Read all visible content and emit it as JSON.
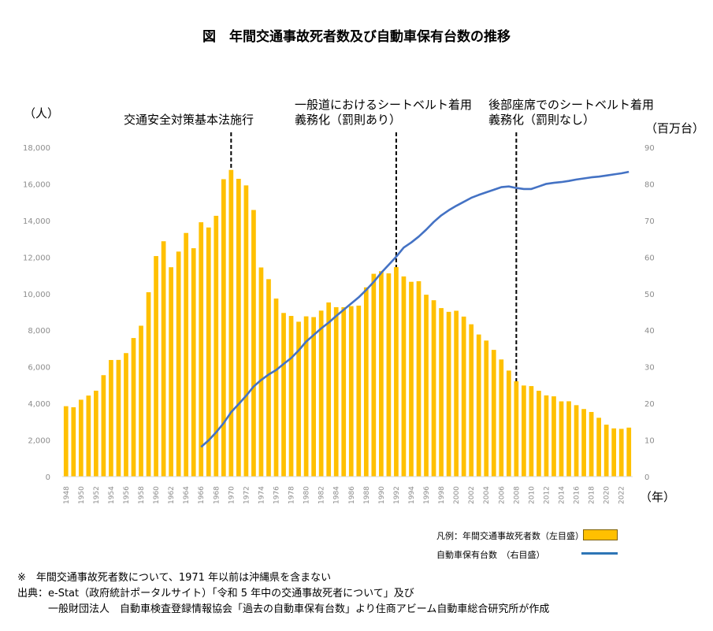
{
  "title": "図　年間交通事故死者数及び自動車保有台数の推移",
  "unit_left": "（人）",
  "unit_right": "（百万台）",
  "year_unit": "（年）",
  "annotations": [
    {
      "line1": "交通安全対策基本法施行",
      "line2": ""
    },
    {
      "line1": "一般道におけるシートベルト着用",
      "line2": "義務化（罰則あり）"
    },
    {
      "line1": "後部座席でのシートベルト着用",
      "line2": "義務化（罰則なし）"
    }
  ],
  "legend": {
    "bar_label": "凡例：年間交通事故死者数（左目盛）",
    "line_label": "自動車保有台数　（右目盛）"
  },
  "notes": {
    "line1": "※　年間交通事故死者数について、1971 年以前は沖縄県を含まない",
    "line2": "出典：e-Stat（政府統計ポータルサイト）「令和 5 年中の交通事故死者について」及び",
    "line3": "　　　一般財団法人　自動車検査登録情報協会「過去の自動車保有台数」より住商アビーム自動車総合研究所が作成"
  },
  "colors": {
    "bar": "#FFC000",
    "line": "#4472C4",
    "axis_text": "#8c8c8c",
    "grid": "#d9d9d9"
  },
  "chart_data": {
    "type": "bar+line",
    "x_start": 1948,
    "x_end": 2023,
    "x_tick_labels": [
      "1948",
      "1950",
      "1952",
      "1954",
      "1956",
      "1958",
      "1960",
      "1962",
      "1964",
      "1966",
      "1968",
      "1970",
      "1972",
      "1974",
      "1976",
      "1978",
      "1980",
      "1982",
      "1984",
      "1986",
      "1988",
      "1990",
      "1992",
      "1994",
      "1996",
      "1998",
      "2000",
      "2002",
      "2004",
      "2006",
      "2008",
      "2010",
      "2012",
      "2014",
      "2016",
      "2018",
      "2020",
      "2022"
    ],
    "y_left": {
      "min": 0,
      "max": 18000,
      "ticks": [
        "0",
        "2,000",
        "4,000",
        "6,000",
        "8,000",
        "10,000",
        "12,000",
        "14,000",
        "16,000",
        "18,000"
      ]
    },
    "y_right": {
      "min": 0,
      "max": 90,
      "ticks": [
        "0",
        "10",
        "20",
        "30",
        "40",
        "50",
        "60",
        "70",
        "80",
        "90"
      ]
    },
    "grid": false,
    "series": [
      {
        "name": "年間交通事故死者数",
        "kind": "bar",
        "axis": "left",
        "x": [
          1948,
          1949,
          1950,
          1951,
          1952,
          1953,
          1954,
          1955,
          1956,
          1957,
          1958,
          1959,
          1960,
          1961,
          1962,
          1963,
          1964,
          1965,
          1966,
          1967,
          1968,
          1969,
          1970,
          1971,
          1972,
          1973,
          1974,
          1975,
          1976,
          1977,
          1978,
          1979,
          1980,
          1981,
          1982,
          1983,
          1984,
          1985,
          1986,
          1987,
          1988,
          1989,
          1990,
          1991,
          1992,
          1993,
          1994,
          1995,
          1996,
          1997,
          1998,
          1999,
          2000,
          2001,
          2002,
          2003,
          2004,
          2005,
          2006,
          2007,
          2008,
          2009,
          2010,
          2011,
          2012,
          2013,
          2014,
          2015,
          2016,
          2017,
          2018,
          2019,
          2020,
          2021,
          2022,
          2023
        ],
        "values": [
          3848,
          3790,
          4202,
          4429,
          4696,
          5544,
          6374,
          6379,
          6751,
          7575,
          8248,
          10079,
          12055,
          12865,
          11445,
          12301,
          13318,
          12484,
          13904,
          13618,
          14256,
          16257,
          16765,
          16278,
          15918,
          14574,
          11432,
          10792,
          9734,
          8945,
          8783,
          8466,
          8760,
          8719,
          9073,
          9520,
          9262,
          9261,
          9317,
          9347,
          10344,
          11086,
          11227,
          11109,
          11452,
          10942,
          10649,
          10679,
          9942,
          9640,
          9211,
          9006,
          9066,
          8747,
          8326,
          7768,
          7436,
          6927,
          6403,
          5796,
          5209,
          4979,
          4948,
          4691,
          4438,
          4388,
          4113,
          4117,
          3904,
          3694,
          3532,
          3215,
          2839,
          2636,
          2610,
          2678
        ]
      },
      {
        "name": "自動車保有台数",
        "kind": "line",
        "axis": "right",
        "x": [
          1966,
          1967,
          1968,
          1969,
          1970,
          1971,
          1972,
          1973,
          1974,
          1975,
          1976,
          1977,
          1978,
          1979,
          1980,
          1981,
          1982,
          1983,
          1984,
          1985,
          1986,
          1987,
          1988,
          1989,
          1990,
          1991,
          1992,
          1993,
          1994,
          1995,
          1996,
          1997,
          1998,
          1999,
          2000,
          2001,
          2002,
          2003,
          2004,
          2005,
          2006,
          2007,
          2008,
          2009,
          2010,
          2011,
          2012,
          2013,
          2014,
          2015,
          2016,
          2017,
          2018,
          2019,
          2020,
          2021,
          2022,
          2023
        ],
        "values": [
          8.1,
          9.9,
          12.1,
          14.6,
          17.6,
          19.8,
          22.1,
          24.6,
          26.4,
          27.9,
          29.1,
          30.8,
          32.4,
          34.5,
          36.9,
          38.7,
          40.5,
          42.1,
          43.9,
          45.6,
          47.3,
          49.0,
          51.0,
          53.2,
          55.7,
          57.9,
          60.1,
          62.6,
          64.0,
          65.6,
          67.5,
          69.6,
          71.4,
          72.8,
          74.0,
          75.1,
          76.2,
          77.0,
          77.7,
          78.4,
          79.1,
          79.3,
          78.9,
          78.6,
          78.6,
          79.3,
          80.0,
          80.3,
          80.5,
          80.8,
          81.2,
          81.5,
          81.8,
          82.0,
          82.3,
          82.6,
          82.9,
          83.3
        ]
      }
    ],
    "vertical_markers": [
      1970,
      1992,
      2008
    ]
  }
}
